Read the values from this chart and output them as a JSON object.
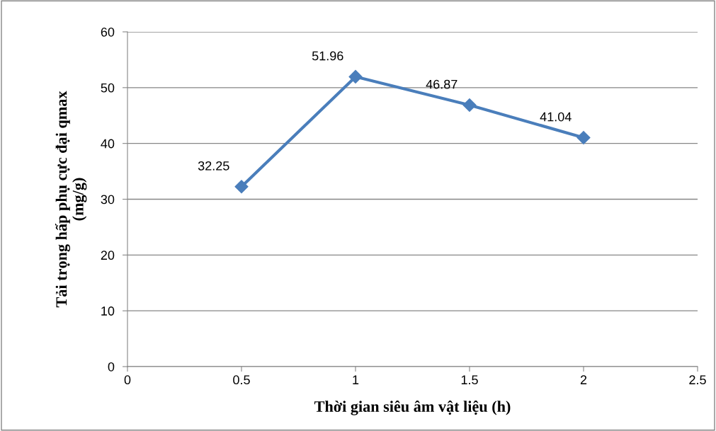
{
  "chart_data": {
    "type": "line",
    "xlabel": "Thời gian siêu âm vật liệu (h)",
    "ylabel": "Tải trọng hấp phụ cực đại qmax\n(mg/g)",
    "x": [
      0.5,
      1,
      1.5,
      2
    ],
    "series": [
      {
        "color": "#4a7ebb",
        "values": [
          32.25,
          51.96,
          46.87,
          41.04
        ]
      }
    ],
    "xlim": [
      0,
      2.5
    ],
    "xticks": [
      0,
      0.5,
      1,
      1.5,
      2,
      2.5
    ],
    "ylim": [
      0,
      60
    ],
    "yticks": [
      0,
      10,
      20,
      30,
      40,
      50,
      60
    ],
    "grid": "y",
    "marker": "diamond",
    "line_style": "solid",
    "data_labels": true
  }
}
